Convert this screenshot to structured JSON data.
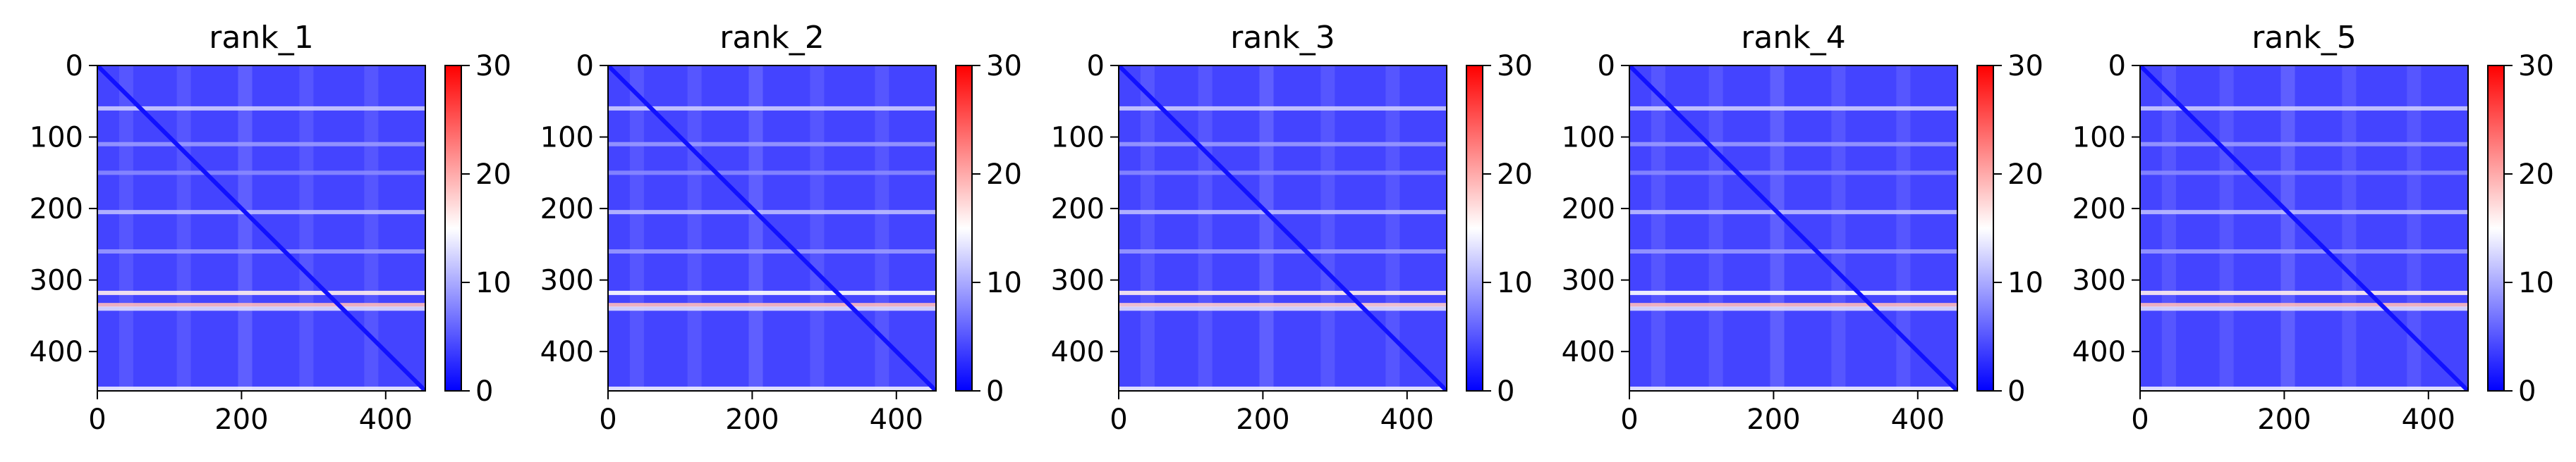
{
  "chart_data": [
    {
      "type": "heatmap",
      "title": "rank_1",
      "xlim": [
        0,
        455
      ],
      "ylim": [
        455,
        0
      ],
      "xticks": [
        0,
        200,
        400
      ],
      "yticks": [
        0,
        100,
        200,
        300,
        400
      ],
      "colorbar": {
        "range": [
          0,
          30
        ],
        "ticks": [
          0,
          10,
          20,
          30
        ],
        "colors": [
          "#0000ff",
          "#ffffff",
          "#ff0000"
        ]
      },
      "features": {
        "baseline": 4,
        "diagonal": 1,
        "vertical_bands": [
          {
            "x": 40,
            "value": 6
          },
          {
            "x": 120,
            "value": 6
          },
          {
            "x": 205,
            "value": 7
          },
          {
            "x": 290,
            "value": 6
          },
          {
            "x": 380,
            "value": 6
          }
        ],
        "horizontal_lines": [
          {
            "y": 60,
            "value": 12
          },
          {
            "y": 110,
            "value": 9
          },
          {
            "y": 150,
            "value": 8
          },
          {
            "y": 205,
            "value": 11
          },
          {
            "y": 260,
            "value": 9
          },
          {
            "y": 318,
            "value": 16
          },
          {
            "y": 335,
            "value": 19
          },
          {
            "y": 340,
            "value": 13
          },
          {
            "y": 452,
            "value": 14
          }
        ]
      }
    },
    {
      "type": "heatmap",
      "title": "rank_2",
      "xlim": [
        0,
        455
      ],
      "ylim": [
        455,
        0
      ],
      "xticks": [
        0,
        200,
        400
      ],
      "yticks": [
        0,
        100,
        200,
        300,
        400
      ],
      "colorbar": {
        "range": [
          0,
          30
        ],
        "ticks": [
          0,
          10,
          20,
          30
        ],
        "colors": [
          "#0000ff",
          "#ffffff",
          "#ff0000"
        ]
      },
      "features": {
        "baseline": 4,
        "diagonal": 1,
        "vertical_bands": [
          {
            "x": 40,
            "value": 6
          },
          {
            "x": 120,
            "value": 6
          },
          {
            "x": 205,
            "value": 7
          },
          {
            "x": 290,
            "value": 6
          },
          {
            "x": 380,
            "value": 6
          }
        ],
        "horizontal_lines": [
          {
            "y": 60,
            "value": 12
          },
          {
            "y": 110,
            "value": 9
          },
          {
            "y": 150,
            "value": 8
          },
          {
            "y": 205,
            "value": 11
          },
          {
            "y": 260,
            "value": 9
          },
          {
            "y": 318,
            "value": 15
          },
          {
            "y": 335,
            "value": 19
          },
          {
            "y": 340,
            "value": 13
          },
          {
            "y": 452,
            "value": 14
          }
        ]
      }
    },
    {
      "type": "heatmap",
      "title": "rank_3",
      "xlim": [
        0,
        455
      ],
      "ylim": [
        455,
        0
      ],
      "xticks": [
        0,
        200,
        400
      ],
      "yticks": [
        0,
        100,
        200,
        300,
        400
      ],
      "colorbar": {
        "range": [
          0,
          30
        ],
        "ticks": [
          0,
          10,
          20,
          30
        ],
        "colors": [
          "#0000ff",
          "#ffffff",
          "#ff0000"
        ]
      },
      "features": {
        "baseline": 4,
        "diagonal": 1,
        "vertical_bands": [
          {
            "x": 40,
            "value": 6
          },
          {
            "x": 120,
            "value": 6
          },
          {
            "x": 205,
            "value": 7
          },
          {
            "x": 290,
            "value": 6
          },
          {
            "x": 380,
            "value": 6
          }
        ],
        "horizontal_lines": [
          {
            "y": 60,
            "value": 12
          },
          {
            "y": 110,
            "value": 9
          },
          {
            "y": 150,
            "value": 8
          },
          {
            "y": 205,
            "value": 11
          },
          {
            "y": 260,
            "value": 9
          },
          {
            "y": 318,
            "value": 16
          },
          {
            "y": 335,
            "value": 18
          },
          {
            "y": 340,
            "value": 13
          },
          {
            "y": 452,
            "value": 14
          }
        ]
      }
    },
    {
      "type": "heatmap",
      "title": "rank_4",
      "xlim": [
        0,
        455
      ],
      "ylim": [
        455,
        0
      ],
      "xticks": [
        0,
        200,
        400
      ],
      "yticks": [
        0,
        100,
        200,
        300,
        400
      ],
      "colorbar": {
        "range": [
          0,
          30
        ],
        "ticks": [
          0,
          10,
          20,
          30
        ],
        "colors": [
          "#0000ff",
          "#ffffff",
          "#ff0000"
        ]
      },
      "features": {
        "baseline": 4,
        "diagonal": 1,
        "vertical_bands": [
          {
            "x": 40,
            "value": 6
          },
          {
            "x": 120,
            "value": 6
          },
          {
            "x": 205,
            "value": 7
          },
          {
            "x": 290,
            "value": 6
          },
          {
            "x": 380,
            "value": 6
          }
        ],
        "horizontal_lines": [
          {
            "y": 60,
            "value": 12
          },
          {
            "y": 110,
            "value": 9
          },
          {
            "y": 150,
            "value": 8
          },
          {
            "y": 205,
            "value": 11
          },
          {
            "y": 260,
            "value": 9
          },
          {
            "y": 318,
            "value": 15
          },
          {
            "y": 335,
            "value": 19
          },
          {
            "y": 340,
            "value": 13
          },
          {
            "y": 452,
            "value": 14
          }
        ]
      }
    },
    {
      "type": "heatmap",
      "title": "rank_5",
      "xlim": [
        0,
        455
      ],
      "ylim": [
        455,
        0
      ],
      "xticks": [
        0,
        200,
        400
      ],
      "yticks": [
        0,
        100,
        200,
        300,
        400
      ],
      "colorbar": {
        "range": [
          0,
          30
        ],
        "ticks": [
          0,
          10,
          20,
          30
        ],
        "colors": [
          "#0000ff",
          "#ffffff",
          "#ff0000"
        ]
      },
      "features": {
        "baseline": 4,
        "diagonal": 1,
        "vertical_bands": [
          {
            "x": 40,
            "value": 6
          },
          {
            "x": 120,
            "value": 6
          },
          {
            "x": 205,
            "value": 7
          },
          {
            "x": 290,
            "value": 6
          },
          {
            "x": 380,
            "value": 6
          }
        ],
        "horizontal_lines": [
          {
            "y": 60,
            "value": 12
          },
          {
            "y": 110,
            "value": 9
          },
          {
            "y": 150,
            "value": 8
          },
          {
            "y": 205,
            "value": 11
          },
          {
            "y": 260,
            "value": 9
          },
          {
            "y": 318,
            "value": 16
          },
          {
            "y": 335,
            "value": 19
          },
          {
            "y": 340,
            "value": 13
          },
          {
            "y": 452,
            "value": 14
          }
        ]
      }
    }
  ]
}
